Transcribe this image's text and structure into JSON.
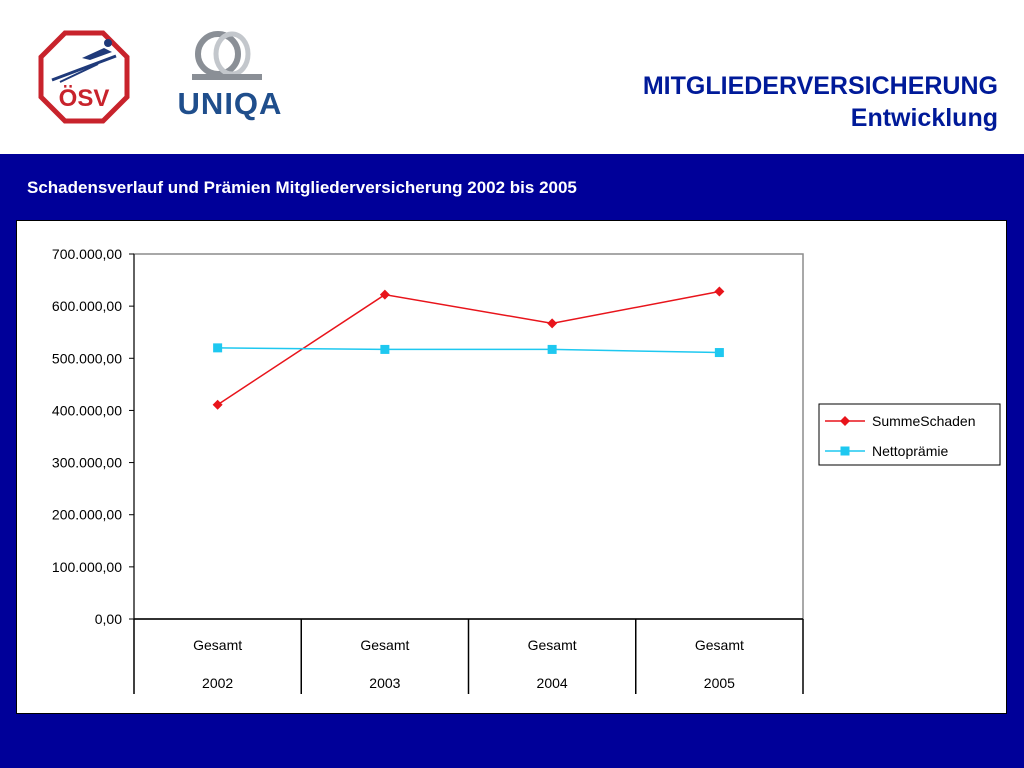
{
  "header": {
    "title_line1": "MITGLIEDERVERSICHERUNG",
    "title_line2": "Entwicklung",
    "logo_right_text": "UNIQA",
    "logo_left_text": "ÖSV"
  },
  "subtitle": "Schadensverlauf und Prämien Mitgliederversicherung 2002 bis 2005",
  "colors": {
    "band": "#000099",
    "title": "#001a99",
    "series_schaden": "#e8141b",
    "series_praemie": "#1ec8f0"
  },
  "chart_data": {
    "type": "line",
    "categories": [
      {
        "top": "Gesamt",
        "bottom": "2002"
      },
      {
        "top": "Gesamt",
        "bottom": "2003"
      },
      {
        "top": "Gesamt",
        "bottom": "2004"
      },
      {
        "top": "Gesamt",
        "bottom": "2005"
      }
    ],
    "series": [
      {
        "name": "SummeSchaden",
        "values": [
          411000,
          622000,
          567000,
          628000
        ],
        "color": "#e8141b",
        "marker": "diamond"
      },
      {
        "name": "Nettoprämie",
        "values": [
          520000,
          517000,
          517000,
          511000
        ],
        "color": "#1ec8f0",
        "marker": "square"
      }
    ],
    "ylim": [
      0,
      700000
    ],
    "yticks": [
      "0,00",
      "100.000,00",
      "200.000,00",
      "300.000,00",
      "400.000,00",
      "500.000,00",
      "600.000,00",
      "700.000,00"
    ],
    "ytick_values": [
      0,
      100000,
      200000,
      300000,
      400000,
      500000,
      600000,
      700000
    ],
    "legend_position": "right",
    "grid": false
  }
}
